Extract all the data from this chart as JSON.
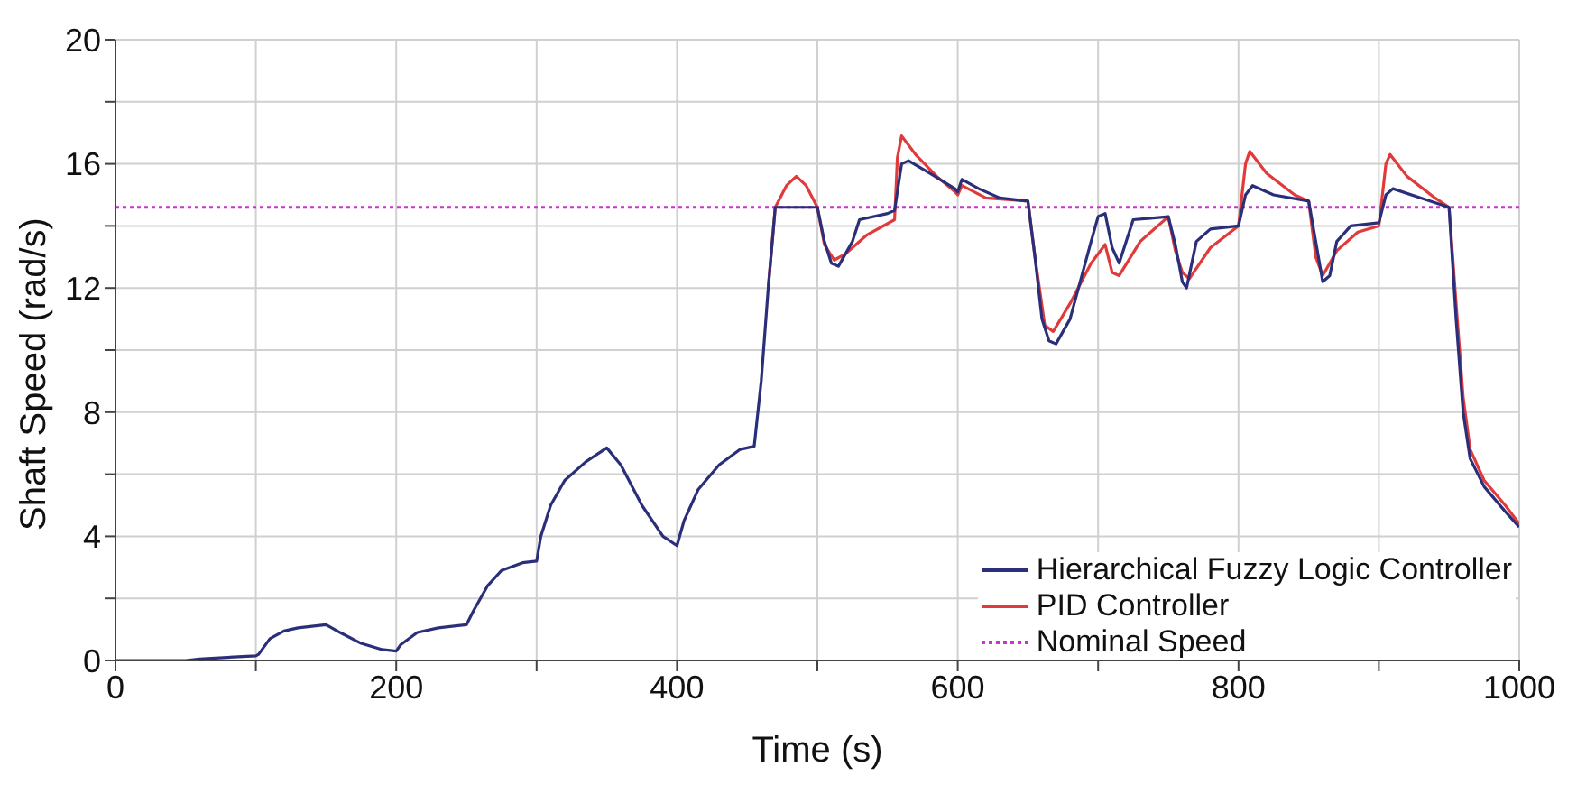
{
  "chart_data": {
    "type": "line",
    "xlabel": "Time  (s)",
    "ylabel": "Shaft  Speed  (rad/s)",
    "xlim": [
      0,
      1000
    ],
    "ylim": [
      0,
      20
    ],
    "xticks": [
      0,
      {
        "value": 100,
        "label": null
      },
      200,
      {
        "value": 300,
        "label": null
      },
      400,
      {
        "value": 500,
        "label": null
      },
      600,
      {
        "value": 700,
        "label": null
      },
      800,
      {
        "value": 900,
        "label": null
      },
      1000
    ],
    "yticks": [
      0,
      {
        "value": 2,
        "label": null
      },
      4,
      {
        "value": 6,
        "label": null
      },
      8,
      {
        "value": 10,
        "label": null
      },
      12,
      {
        "value": 14,
        "label": null
      },
      16,
      {
        "value": 18,
        "label": null
      },
      20
    ],
    "grid": true,
    "legend": "bottom right",
    "marker": "none",
    "series": [
      {
        "name": "Hierarchical Fuzzy Logic Controller",
        "color": "#2b2f7a",
        "line_style": "solid",
        "x": [
          0,
          50,
          60,
          100,
          102,
          110,
          120,
          130,
          150,
          160,
          175,
          190,
          200,
          203,
          215,
          230,
          250,
          255,
          265,
          275,
          290,
          300,
          303,
          310,
          320,
          335,
          350,
          360,
          375,
          390,
          400,
          405,
          415,
          430,
          445,
          455,
          460,
          465,
          470,
          500,
          505,
          510,
          515,
          525,
          530,
          550,
          555,
          560,
          565,
          580,
          598,
          600,
          603,
          615,
          630,
          650,
          655,
          660,
          665,
          670,
          680,
          695,
          700,
          705,
          710,
          715,
          720,
          725,
          750,
          755,
          760,
          763,
          770,
          780,
          800,
          805,
          810,
          825,
          850,
          855,
          860,
          865,
          870,
          880,
          900,
          905,
          910,
          930,
          950,
          955,
          960,
          965,
          975,
          990,
          1000
        ],
        "values": [
          0,
          0,
          0.05,
          0.15,
          0.2,
          0.7,
          0.95,
          1.05,
          1.15,
          0.9,
          0.55,
          0.35,
          0.3,
          0.5,
          0.9,
          1.05,
          1.15,
          1.6,
          2.4,
          2.9,
          3.15,
          3.2,
          4.0,
          5.0,
          5.8,
          6.4,
          6.85,
          6.3,
          5.0,
          4.0,
          3.7,
          4.5,
          5.5,
          6.3,
          6.8,
          6.9,
          9,
          12,
          14.6,
          14.6,
          13.5,
          12.8,
          12.7,
          13.5,
          14.2,
          14.4,
          14.5,
          16.0,
          16.1,
          15.7,
          15.2,
          15.1,
          15.5,
          15.2,
          14.9,
          14.8,
          13,
          11,
          10.3,
          10.2,
          11,
          13.5,
          14.3,
          14.4,
          13.3,
          12.8,
          13.5,
          14.2,
          14.3,
          13.4,
          12.2,
          12.0,
          13.5,
          13.9,
          14.0,
          15,
          15.3,
          15.0,
          14.8,
          13.5,
          12.2,
          12.4,
          13.5,
          14.0,
          14.1,
          15,
          15.2,
          14.9,
          14.6,
          11,
          8,
          6.5,
          5.6,
          4.8,
          4.3
        ]
      },
      {
        "name": "PID Controller",
        "color": "#e03a3a",
        "line_style": "solid",
        "x": [
          465,
          470,
          478,
          485,
          492,
          500,
          505,
          512,
          520,
          535,
          555,
          557,
          560,
          570,
          585,
          598,
          600,
          603,
          620,
          650,
          655,
          662,
          668,
          680,
          695,
          705,
          710,
          715,
          730,
          750,
          755,
          760,
          765,
          780,
          800,
          805,
          808,
          820,
          840,
          850,
          855,
          860,
          870,
          885,
          900,
          905,
          908,
          920,
          940,
          950,
          955,
          960,
          965,
          975,
          990,
          1000
        ],
        "values": [
          12,
          14.6,
          15.3,
          15.6,
          15.3,
          14.6,
          13.4,
          12.9,
          13.1,
          13.7,
          14.2,
          16.2,
          16.9,
          16.3,
          15.6,
          15.1,
          15.0,
          15.3,
          14.9,
          14.8,
          13,
          10.8,
          10.6,
          11.5,
          12.8,
          13.4,
          12.5,
          12.4,
          13.5,
          14.3,
          13.2,
          12.5,
          12.3,
          13.3,
          14.0,
          16.0,
          16.4,
          15.7,
          15.0,
          14.8,
          13,
          12.4,
          13.2,
          13.8,
          14.0,
          16.0,
          16.3,
          15.6,
          14.9,
          14.6,
          11.5,
          8.5,
          6.8,
          5.8,
          5.0,
          4.4
        ]
      },
      {
        "name": "Nominal Speed",
        "color": "#cc33cc",
        "line_style": "dotted",
        "x": [
          0,
          1000
        ],
        "values": [
          14.6,
          14.6
        ]
      }
    ]
  }
}
